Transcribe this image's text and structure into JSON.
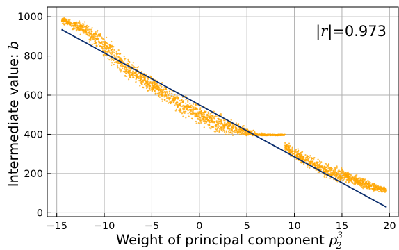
{
  "chart_data": {
    "type": "scatter",
    "xlabel": "Weight of principal component",
    "xlabel_math": {
      "base": "p",
      "sub": "2",
      "sup": "3"
    },
    "ylabel": "Intermediate value:",
    "ylabel_math": "b",
    "xlim": [
      -16,
      21
    ],
    "ylim": [
      -20,
      1050
    ],
    "x_ticks": [
      -15,
      -10,
      -5,
      0,
      5,
      10,
      15,
      20
    ],
    "x_tick_labels": [
      "−15",
      "−10",
      "−5",
      "0",
      "5",
      "10",
      "15",
      "20"
    ],
    "y_ticks": [
      0,
      200,
      400,
      600,
      800,
      1000
    ],
    "y_tick_labels": [
      "0",
      "200",
      "400",
      "600",
      "800",
      "1000"
    ],
    "grid": true,
    "annotation": {
      "bar": "|",
      "var": "r",
      "rest": "|=0.973",
      "position": "top-right"
    },
    "point_color": "#FFA500",
    "line_color": "#0B2E6E",
    "fit_line": {
      "x": [
        -14.5,
        19.7
      ],
      "y": [
        935,
        28
      ]
    },
    "cloud_profile": {
      "x": [
        -14.5,
        -12,
        -10,
        -8,
        -6,
        -4,
        -2,
        0,
        2,
        4,
        6,
        8,
        10,
        12,
        14,
        16,
        18,
        19.7
      ],
      "y_center": [
        985,
        935,
        850,
        755,
        680,
        620,
        555,
        500,
        455,
        425,
        395,
        375,
        305,
        250,
        205,
        175,
        135,
        115
      ],
      "half_width": [
        15,
        40,
        60,
        55,
        45,
        45,
        55,
        50,
        50,
        35,
        15,
        20,
        30,
        35,
        40,
        30,
        25,
        15
      ]
    }
  }
}
